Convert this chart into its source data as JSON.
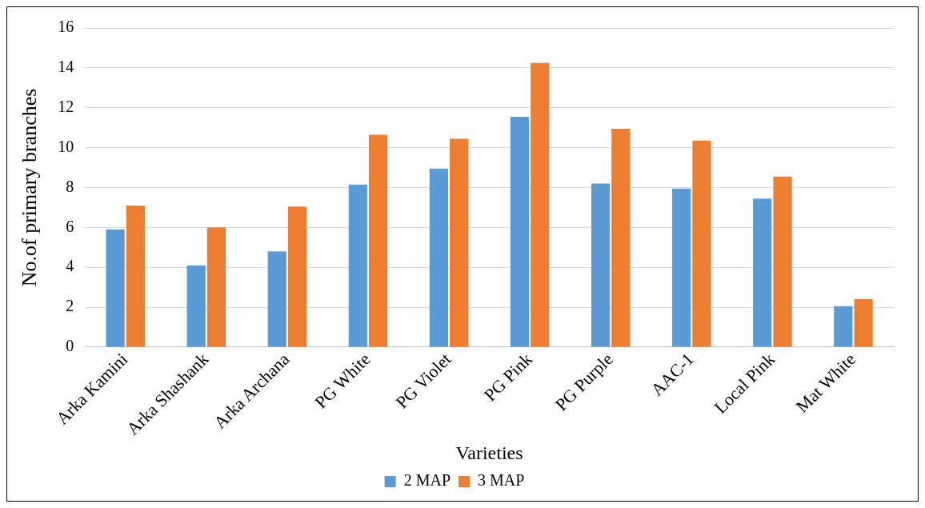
{
  "chart_data": {
    "type": "bar",
    "xlabel": "Varieties",
    "ylabel": "No.of primary branches",
    "categories": [
      "Arka Kamini",
      "Arka Shashank",
      "Arka Archana",
      "PG White",
      "PG Violet",
      "PG Pink",
      "PG Purple",
      "AAC-1",
      "Local Pink",
      "Mat White"
    ],
    "series": [
      {
        "name": "2 MAP",
        "color": "#5b9bd5",
        "values": [
          5.9,
          4.1,
          4.8,
          8.15,
          8.95,
          11.55,
          8.2,
          7.95,
          7.45,
          2.05
        ]
      },
      {
        "name": "3 MAP",
        "color": "#ed7d31",
        "values": [
          7.1,
          6.0,
          7.05,
          10.65,
          10.45,
          14.25,
          10.95,
          10.35,
          8.55,
          2.4
        ]
      }
    ],
    "ylim": [
      0,
      16
    ],
    "yticks": [
      0,
      2,
      4,
      6,
      8,
      10,
      12,
      14,
      16
    ],
    "grid": "y",
    "legend": "bottom"
  }
}
